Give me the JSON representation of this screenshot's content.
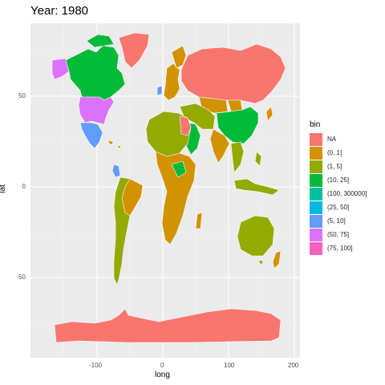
{
  "title": "Year: 1980",
  "axes": {
    "x_title": "long",
    "y_title": "lat",
    "x_ticks": [
      "-100",
      "0",
      "100",
      "200"
    ],
    "y_ticks": [
      "50",
      "0",
      "-50"
    ]
  },
  "legend": {
    "title": "bin",
    "items": [
      {
        "label": "NA",
        "color": "#f8766d"
      },
      {
        "label": "(0, 1]",
        "color": "#d39200"
      },
      {
        "label": "(1, 5]",
        "color": "#93aa00"
      },
      {
        "label": "(10, 25]",
        "color": "#00ba38"
      },
      {
        "label": "(100, 300000]",
        "color": "#00c19f"
      },
      {
        "label": "(25, 50]",
        "color": "#00b9e3"
      },
      {
        "label": "(5, 10]",
        "color": "#619cff"
      },
      {
        "label": "(50, 75]",
        "color": "#db72fb"
      },
      {
        "label": "(75, 100]",
        "color": "#ff61c3"
      }
    ]
  },
  "colors": {
    "panel_bg": "#ebebeb",
    "grid": "#ffffff"
  }
}
